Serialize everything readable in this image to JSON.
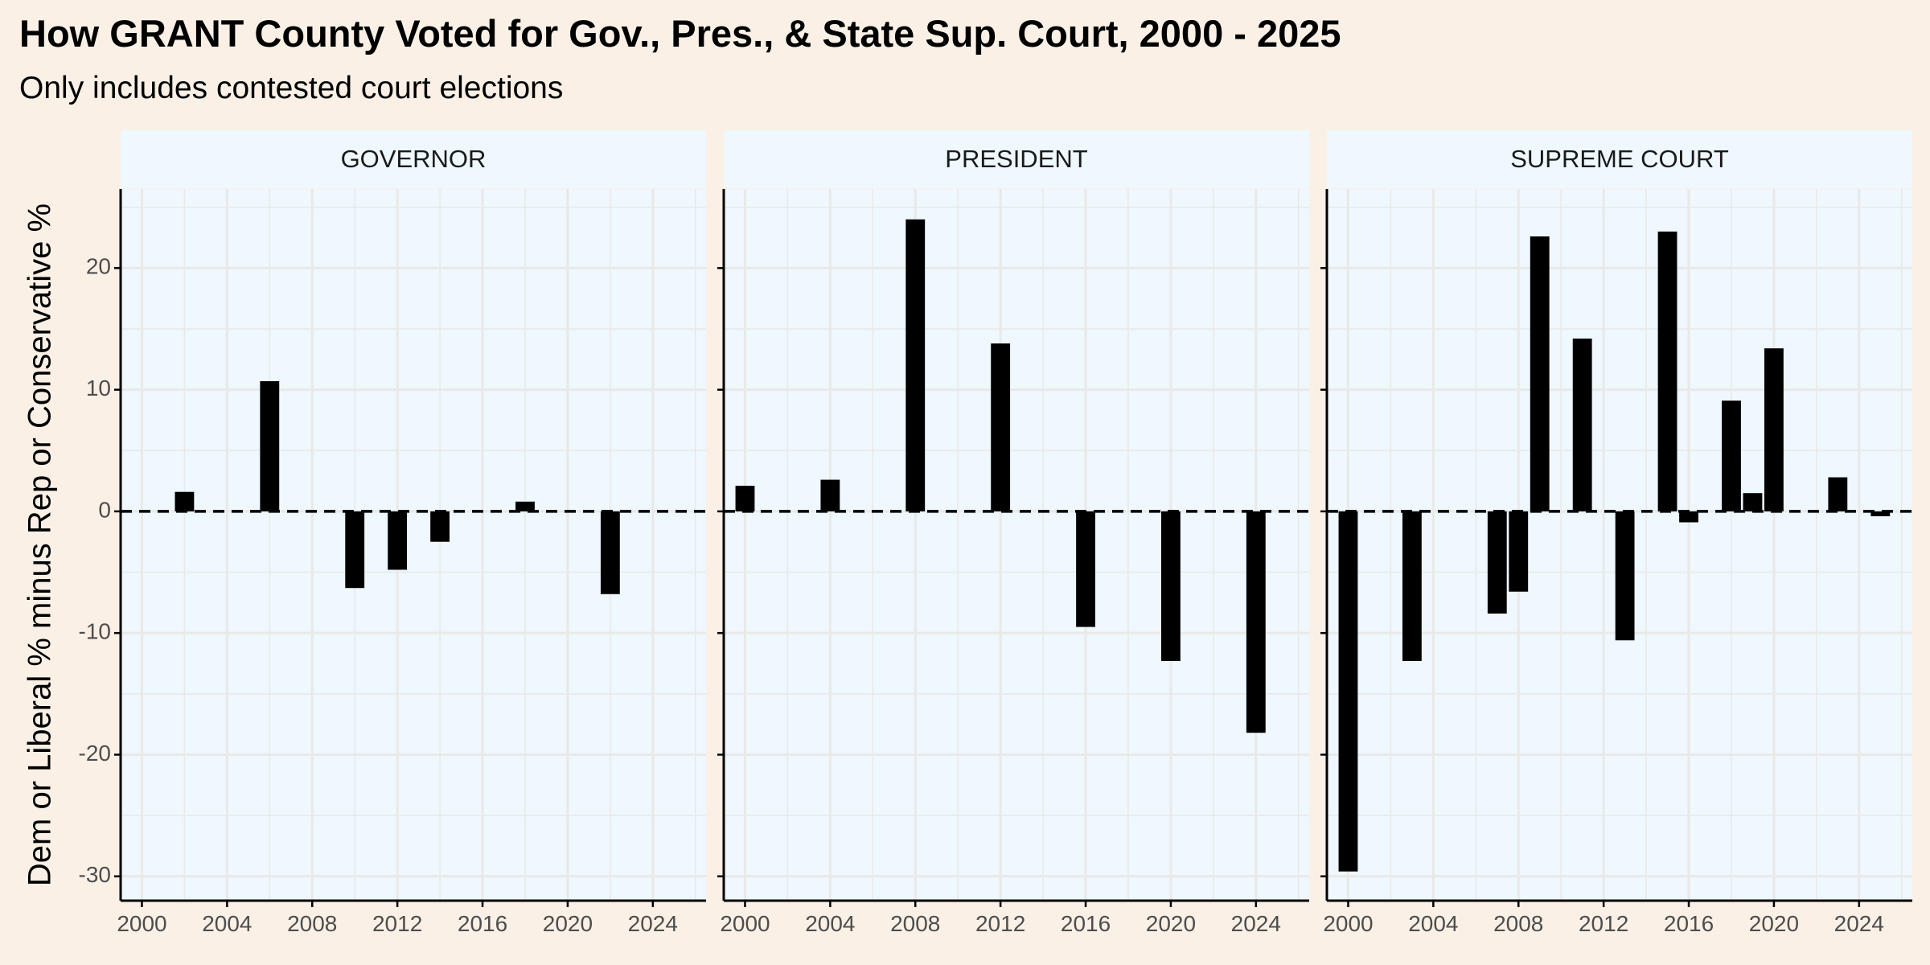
{
  "chart_data": {
    "type": "bar",
    "title": "How GRANT County Voted for Gov., Pres., & State Sup. Court, 2000 - 2025",
    "subtitle": "Only includes contested court elections",
    "ylabel": "Dem or Liberal % minus Rep or Conservative %",
    "xlabel": "",
    "xlim": [
      1999,
      2026.5
    ],
    "ylim": [
      -32,
      26.5
    ],
    "x_ticks": [
      2000,
      2004,
      2008,
      2012,
      2016,
      2020,
      2024
    ],
    "y_ticks": [
      -30,
      -20,
      -10,
      0,
      10,
      20
    ],
    "reference_line": {
      "y": 0,
      "style": "dashed"
    },
    "grid": true,
    "legend": "none",
    "colors": {
      "bar": "#000000",
      "panel_background": "#eff7ff",
      "page_background": "#faf0e6",
      "grid": "#e9e9e6",
      "axis": "#000000",
      "tick_label": "#4d4d4d"
    },
    "panels": [
      {
        "name": "GOVERNOR",
        "points": [
          {
            "x": 2002,
            "y": 1.6
          },
          {
            "x": 2006,
            "y": 10.7
          },
          {
            "x": 2010,
            "y": -6.3
          },
          {
            "x": 2012,
            "y": -4.8
          },
          {
            "x": 2014,
            "y": -2.5
          },
          {
            "x": 2018,
            "y": 0.8
          },
          {
            "x": 2022,
            "y": -6.8
          }
        ]
      },
      {
        "name": "PRESIDENT",
        "points": [
          {
            "x": 2000,
            "y": 2.1
          },
          {
            "x": 2004,
            "y": 2.6
          },
          {
            "x": 2008,
            "y": 24.0
          },
          {
            "x": 2012,
            "y": 13.8
          },
          {
            "x": 2016,
            "y": -9.5
          },
          {
            "x": 2020,
            "y": -12.3
          },
          {
            "x": 2024,
            "y": -18.2
          }
        ]
      },
      {
        "name": "SUPREME COURT",
        "points": [
          {
            "x": 2000,
            "y": -29.6
          },
          {
            "x": 2003,
            "y": -12.3
          },
          {
            "x": 2007,
            "y": -8.4
          },
          {
            "x": 2008,
            "y": -6.6
          },
          {
            "x": 2009,
            "y": 22.6
          },
          {
            "x": 2011,
            "y": 14.2
          },
          {
            "x": 2013,
            "y": -10.6
          },
          {
            "x": 2015,
            "y": 23.0
          },
          {
            "x": 2016,
            "y": -0.9
          },
          {
            "x": 2018,
            "y": 9.1
          },
          {
            "x": 2019,
            "y": 1.5
          },
          {
            "x": 2020,
            "y": 13.4
          },
          {
            "x": 2023,
            "y": 2.8
          },
          {
            "x": 2025,
            "y": -0.4
          }
        ]
      }
    ]
  }
}
